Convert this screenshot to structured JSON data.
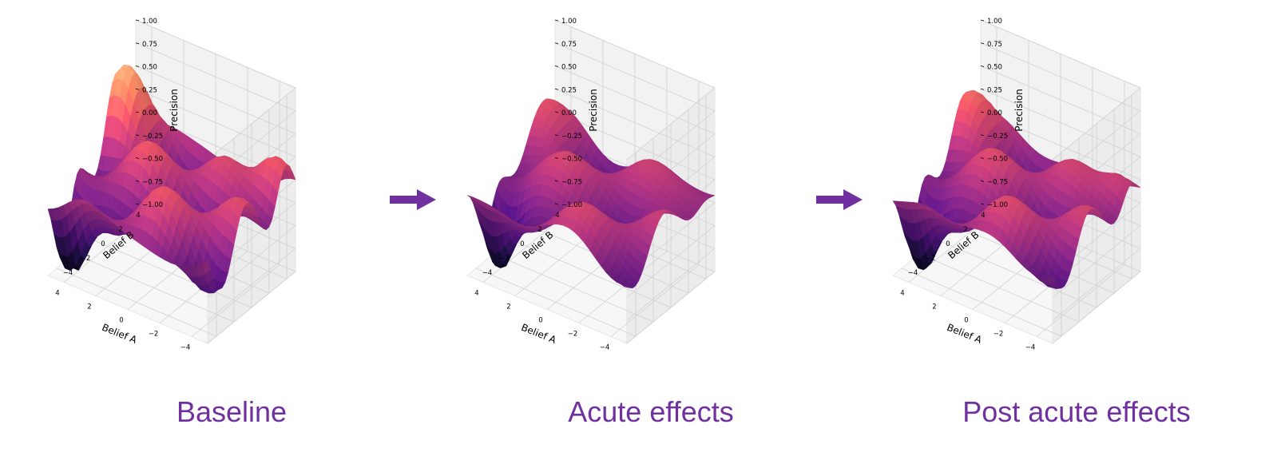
{
  "colors": {
    "caption": "#7030a0",
    "arrow": "#7030a0"
  },
  "captions": [
    "Baseline",
    "Acute effects",
    "Post acute effects"
  ],
  "chart_data": [
    {
      "type": "surface",
      "title": "Baseline",
      "xlabel": "Belief A",
      "ylabel": "Belief B",
      "zlabel": "Precision",
      "xlim": [
        -5,
        5
      ],
      "ylim": [
        -5,
        5
      ],
      "zlim": [
        -1.0,
        1.0
      ],
      "xticks": [
        "−4",
        "−2",
        "0",
        "2",
        "4"
      ],
      "yticks": [
        "−4",
        "−2",
        "0",
        "2",
        "4"
      ],
      "zticks": [
        "−1.00",
        "−0.75",
        "−0.50",
        "−0.25",
        "0.00",
        "0.25",
        "0.50",
        "0.75",
        "1.00"
      ],
      "colormap": "magma",
      "grid": true
    },
    {
      "type": "surface",
      "title": "Acute effects",
      "xlabel": "Belief A",
      "ylabel": "Belief B",
      "zlabel": "Precision",
      "xlim": [
        -5,
        5
      ],
      "ylim": [
        -5,
        5
      ],
      "zlim": [
        -1.0,
        1.0
      ],
      "xticks": [
        "−4",
        "−2",
        "0",
        "2",
        "4"
      ],
      "yticks": [
        "−4",
        "−2",
        "0",
        "2",
        "4"
      ],
      "zticks": [
        "−1.00",
        "−0.75",
        "−0.50",
        "−0.25",
        "0.00",
        "0.25",
        "0.50",
        "0.75",
        "1.00"
      ],
      "colormap": "magma",
      "grid": true
    },
    {
      "type": "surface",
      "title": "Post acute effects",
      "xlabel": "Belief A",
      "ylabel": "Belief B",
      "zlabel": "Precision",
      "xlim": [
        -5,
        5
      ],
      "ylim": [
        -5,
        5
      ],
      "zlim": [
        -1.0,
        1.0
      ],
      "xticks": [
        "−4",
        "−2",
        "0",
        "2",
        "4"
      ],
      "yticks": [
        "−4",
        "−2",
        "0",
        "2",
        "4"
      ],
      "zticks": [
        "−1.00",
        "−0.75",
        "−0.50",
        "−0.25",
        "0.00",
        "0.25",
        "0.50",
        "0.75",
        "1.00"
      ],
      "colormap": "magma",
      "grid": true
    }
  ]
}
